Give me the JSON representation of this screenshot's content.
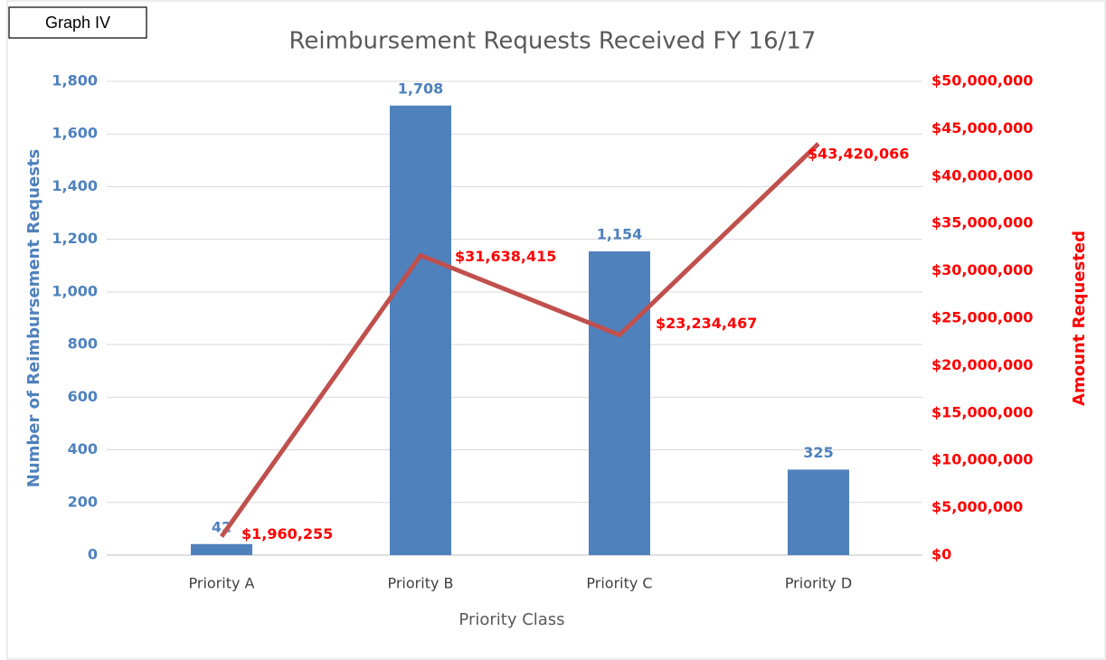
{
  "label": "Graph IV",
  "chart_data": {
    "type": "bar_line",
    "title": "Reimbursement Requests Received FY 16/17",
    "x_label": "Priority Class",
    "y_label": "Number of Reimbursement Requests",
    "y2_label": "Amount Requested",
    "categories": [
      "Priority A",
      "Priority B",
      "Priority C",
      "Priority D"
    ],
    "series": [
      {
        "type": "bar",
        "color": "#4f81bd",
        "values": [
          42,
          1708,
          1154,
          325
        ],
        "value_labels": [
          "42",
          "1,708",
          "1,154",
          "325"
        ]
      },
      {
        "type": "line",
        "axis": "y2",
        "color": "#c0504d",
        "values": [
          1960255,
          31638415,
          23234467,
          43420066
        ],
        "value_labels": [
          "$1,960,255",
          "$31,638,415",
          "$23,234,467",
          "$43,420,066"
        ]
      }
    ],
    "ylim": [
      0,
      1800
    ],
    "yticks": [
      0,
      200,
      400,
      600,
      800,
      {
        "value": 1000,
        "label": "1,000"
      },
      {
        "value": 1200,
        "label": "1,200"
      },
      {
        "value": 1400,
        "label": "1,400"
      },
      {
        "value": 1600,
        "label": "1,600"
      },
      {
        "value": 1800,
        "label": "1,800"
      }
    ],
    "y2lim": [
      0,
      50000000
    ],
    "y2ticks": [
      {
        "value": 0,
        "label": "$0"
      },
      {
        "value": 5000000,
        "label": "$5,000,000"
      },
      {
        "value": 10000000,
        "label": "$10,000,000"
      },
      {
        "value": 15000000,
        "label": "$15,000,000"
      },
      {
        "value": 20000000,
        "label": "$20,000,000"
      },
      {
        "value": 25000000,
        "label": "$25,000,000"
      },
      {
        "value": 30000000,
        "label": "$30,000,000"
      },
      {
        "value": 35000000,
        "label": "$35,000,000"
      },
      {
        "value": 40000000,
        "label": "$40,000,000"
      },
      {
        "value": 45000000,
        "label": "$45,000,000"
      },
      {
        "value": 50000000,
        "label": "$50,000,000"
      }
    ],
    "grid": true,
    "y_color": "#4f81bd",
    "y2_color": "#ff0000"
  }
}
